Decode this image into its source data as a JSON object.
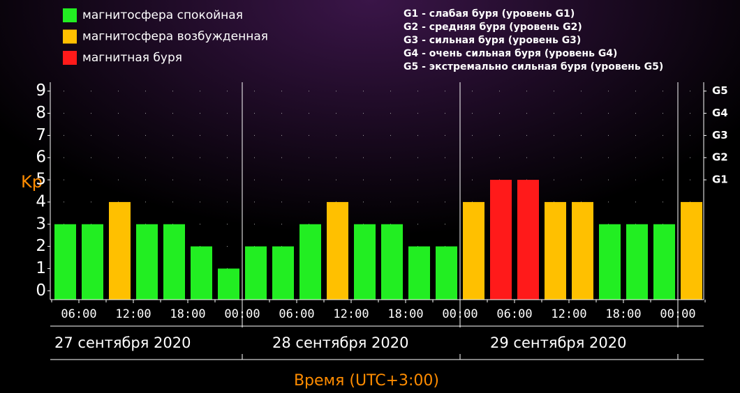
{
  "chart_data": {
    "type": "bar",
    "legend": [
      {
        "name": "магнитосфера спокойная",
        "color": "#22ee22"
      },
      {
        "name": "магнитосфера возбужденная",
        "color": "#ffc000"
      },
      {
        "name": "магнитная буря",
        "color": "#ff1a1a"
      }
    ],
    "storm_levels": [
      "G1 - слабая буря (уровень G1)",
      "G2 - средняя буря (уровень G2)",
      "G3 - сильная буря (уровень G3)",
      "G4 - очень сильная буря (уровень G4)",
      "G5 - экстремально сильная буря (уровень G5)"
    ],
    "ylabel": "Kp",
    "xlabel": "Время (UTC+3:00)",
    "days": [
      "27 сентября 2020",
      "28 сентября 2020",
      "29 сентября 2020"
    ],
    "categories": [
      null,
      null,
      null,
      null,
      null,
      null,
      null,
      null,
      null,
      null,
      null,
      null,
      null,
      null,
      null,
      null,
      null,
      null,
      null,
      null,
      null,
      null,
      null,
      null
    ],
    "values": [
      3,
      3,
      4,
      3,
      3,
      2,
      1,
      2,
      2,
      3,
      4,
      3,
      3,
      2,
      2,
      4,
      5,
      5,
      4,
      4,
      3,
      3,
      3,
      4
    ],
    "colors": [
      "#22ee22",
      "#22ee22",
      "#ffc000",
      "#22ee22",
      "#22ee22",
      "#22ee22",
      "#22ee22",
      "#22ee22",
      "#22ee22",
      "#22ee22",
      "#ffc000",
      "#22ee22",
      "#22ee22",
      "#22ee22",
      "#22ee22",
      "#ffc000",
      "#ff1a1a",
      "#ff1a1a",
      "#ffc000",
      "#ffc000",
      "#22ee22",
      "#22ee22",
      "#22ee22",
      "#ffc000"
    ],
    "xticks": [
      "06:00",
      "12:00",
      "18:00",
      "00:00",
      "06:00",
      "12:00",
      "18:00",
      "00:00",
      "06:00",
      "12:00",
      "18:00",
      "00:00"
    ],
    "ylim": [
      -0.4,
      9.4
    ],
    "yticks": [
      0,
      1,
      2,
      3,
      4,
      5,
      6,
      7,
      8,
      9
    ],
    "y2ticks": [
      {
        "value": 5,
        "label": "G1"
      },
      {
        "value": 6,
        "label": "G2"
      },
      {
        "value": 7,
        "label": "G3"
      },
      {
        "value": 8,
        "label": "G4"
      },
      {
        "value": 9,
        "label": "G5"
      }
    ],
    "grid": true
  }
}
